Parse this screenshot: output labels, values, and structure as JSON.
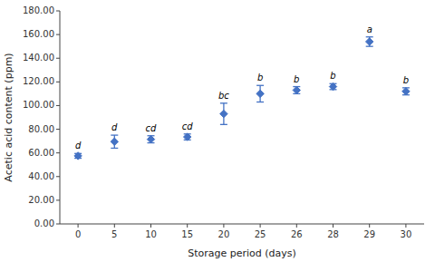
{
  "chart_data": {
    "type": "line",
    "line_style": "none",
    "marker": "diamond",
    "color": "#4472C4",
    "x_label": "Storage period (days)",
    "y_label": "Acetic acid content (ppm)",
    "categories": [
      "0",
      "5",
      "10",
      "15",
      "20",
      "25",
      "26",
      "28",
      "29",
      "30"
    ],
    "values": [
      57.5,
      69.5,
      71.5,
      73.5,
      93.0,
      110.0,
      113.0,
      116.0,
      154.0,
      112.0
    ],
    "errors": [
      2.0,
      5.5,
      3.0,
      2.5,
      9.0,
      7.0,
      3.0,
      2.5,
      4.0,
      3.0
    ],
    "point_labels": [
      "d",
      "d",
      "cd",
      "cd",
      "bc",
      "b",
      "b",
      "b",
      "a",
      "b"
    ],
    "ylim": [
      0,
      180
    ],
    "yticks": [
      {
        "value": 0,
        "label": "0.00"
      },
      {
        "value": 20,
        "label": "20.00"
      },
      {
        "value": 40,
        "label": "40.00"
      },
      {
        "value": 60,
        "label": "60.00"
      },
      {
        "value": 80,
        "label": "80.00"
      },
      {
        "value": 100,
        "label": "100.00"
      },
      {
        "value": 120,
        "label": "120.00"
      },
      {
        "value": 140,
        "label": "140.00"
      },
      {
        "value": 160,
        "label": "160.00"
      },
      {
        "value": 180,
        "label": "180.00"
      }
    ],
    "grid": false
  }
}
